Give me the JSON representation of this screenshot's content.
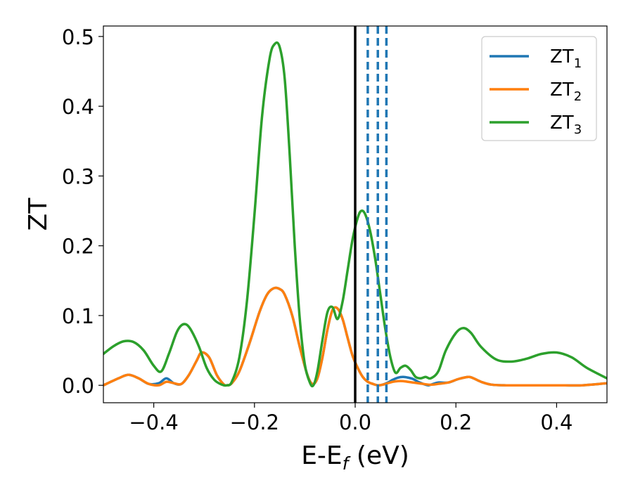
{
  "chart_data": {
    "type": "line",
    "xlabel": "E-E",
    "xlabel_sub": "f",
    "xlabel_unit": "(eV)",
    "ylabel": "ZT",
    "xlim": [
      -0.5,
      0.5
    ],
    "ylim": [
      -0.025,
      0.515
    ],
    "xticks": [
      -0.4,
      -0.2,
      0.0,
      0.2,
      0.4
    ],
    "xtick_labels": [
      "−0.4",
      "−0.2",
      "0.0",
      "0.2",
      "0.4"
    ],
    "yticks": [
      0.0,
      0.1,
      0.2,
      0.3,
      0.4,
      0.5
    ],
    "ytick_labels": [
      "0.0",
      "0.1",
      "0.2",
      "0.3",
      "0.4",
      "0.5"
    ],
    "legend_position": "top-right",
    "grid": false,
    "fermi_line_x": 0.0,
    "dashed_lines_x": [
      0.025,
      0.045,
      0.062
    ],
    "dashed_color": "#1f77b4",
    "series": [
      {
        "name": "ZT",
        "sub": "1",
        "color": "#1f77b4",
        "x": [
          -0.5,
          -0.47,
          -0.45,
          -0.43,
          -0.41,
          -0.39,
          -0.375,
          -0.36,
          -0.345,
          -0.33,
          -0.315,
          -0.305,
          -0.29,
          -0.275,
          -0.262,
          -0.255,
          -0.245,
          -0.23,
          -0.21,
          -0.19,
          -0.175,
          -0.162,
          -0.15,
          -0.14,
          -0.125,
          -0.11,
          -0.095,
          -0.085,
          -0.075,
          -0.065,
          -0.055,
          -0.045,
          -0.035,
          -0.025,
          -0.015,
          -0.005,
          0.005,
          0.015,
          0.025,
          0.035,
          0.045,
          0.055,
          0.065,
          0.075,
          0.085,
          0.095,
          0.105,
          0.115,
          0.125,
          0.135,
          0.145,
          0.155,
          0.165,
          0.185,
          0.205,
          0.225,
          0.235,
          0.25,
          0.27,
          0.3,
          0.35,
          0.4,
          0.45,
          0.5
        ],
        "y": [
          0.0,
          0.01,
          0.015,
          0.01,
          0.002,
          0.003,
          0.01,
          0.003,
          0.002,
          0.015,
          0.035,
          0.047,
          0.04,
          0.015,
          0.002,
          0.0,
          0.003,
          0.02,
          0.06,
          0.105,
          0.13,
          0.139,
          0.138,
          0.13,
          0.1,
          0.055,
          0.015,
          0.002,
          0.01,
          0.04,
          0.08,
          0.108,
          0.11,
          0.095,
          0.068,
          0.042,
          0.025,
          0.012,
          0.005,
          0.002,
          0.0,
          0.001,
          0.004,
          0.008,
          0.011,
          0.012,
          0.011,
          0.009,
          0.005,
          0.002,
          0.0,
          0.002,
          0.004,
          0.004,
          0.009,
          0.012,
          0.01,
          0.005,
          0.001,
          0.0,
          0.0,
          0.0,
          0.0,
          0.003
        ]
      },
      {
        "name": "ZT",
        "sub": "2",
        "color": "#ff7f0e",
        "x": [
          -0.5,
          -0.47,
          -0.45,
          -0.43,
          -0.41,
          -0.39,
          -0.375,
          -0.36,
          -0.345,
          -0.33,
          -0.315,
          -0.305,
          -0.29,
          -0.275,
          -0.262,
          -0.255,
          -0.245,
          -0.23,
          -0.21,
          -0.19,
          -0.175,
          -0.162,
          -0.15,
          -0.14,
          -0.125,
          -0.11,
          -0.095,
          -0.085,
          -0.075,
          -0.065,
          -0.055,
          -0.045,
          -0.035,
          -0.025,
          -0.015,
          -0.005,
          0.005,
          0.015,
          0.025,
          0.035,
          0.045,
          0.055,
          0.065,
          0.075,
          0.085,
          0.095,
          0.105,
          0.115,
          0.125,
          0.135,
          0.145,
          0.155,
          0.165,
          0.185,
          0.205,
          0.225,
          0.235,
          0.25,
          0.27,
          0.3,
          0.35,
          0.4,
          0.45,
          0.5
        ],
        "y": [
          0.0,
          0.01,
          0.015,
          0.01,
          0.002,
          0.0,
          0.005,
          0.003,
          0.002,
          0.015,
          0.035,
          0.047,
          0.04,
          0.015,
          0.002,
          0.0,
          0.003,
          0.02,
          0.06,
          0.105,
          0.13,
          0.139,
          0.138,
          0.13,
          0.1,
          0.055,
          0.015,
          0.002,
          0.01,
          0.04,
          0.08,
          0.108,
          0.11,
          0.095,
          0.068,
          0.042,
          0.025,
          0.012,
          0.005,
          0.002,
          0.0,
          0.001,
          0.003,
          0.005,
          0.006,
          0.006,
          0.005,
          0.004,
          0.003,
          0.002,
          0.001,
          0.001,
          0.002,
          0.004,
          0.009,
          0.012,
          0.01,
          0.005,
          0.001,
          0.0,
          0.0,
          0.0,
          0.0,
          0.003
        ]
      },
      {
        "name": "ZT",
        "sub": "3",
        "color": "#2ca02c",
        "x": [
          -0.5,
          -0.48,
          -0.46,
          -0.44,
          -0.42,
          -0.4,
          -0.385,
          -0.37,
          -0.355,
          -0.345,
          -0.335,
          -0.325,
          -0.31,
          -0.295,
          -0.28,
          -0.265,
          -0.255,
          -0.245,
          -0.23,
          -0.215,
          -0.2,
          -0.185,
          -0.17,
          -0.16,
          -0.15,
          -0.14,
          -0.13,
          -0.12,
          -0.11,
          -0.1,
          -0.09,
          -0.083,
          -0.075,
          -0.065,
          -0.055,
          -0.045,
          -0.035,
          -0.025,
          -0.015,
          -0.005,
          0.005,
          0.012,
          0.02,
          0.03,
          0.04,
          0.05,
          0.06,
          0.07,
          0.08,
          0.09,
          0.1,
          0.11,
          0.12,
          0.13,
          0.14,
          0.15,
          0.165,
          0.18,
          0.2,
          0.215,
          0.23,
          0.25,
          0.28,
          0.31,
          0.34,
          0.37,
          0.4,
          0.43,
          0.46,
          0.5
        ],
        "y": [
          0.045,
          0.056,
          0.063,
          0.062,
          0.05,
          0.028,
          0.02,
          0.045,
          0.075,
          0.086,
          0.087,
          0.078,
          0.055,
          0.025,
          0.008,
          0.001,
          0.0,
          0.005,
          0.04,
          0.12,
          0.245,
          0.385,
          0.468,
          0.489,
          0.485,
          0.44,
          0.33,
          0.2,
          0.095,
          0.03,
          0.004,
          0.0,
          0.02,
          0.065,
          0.105,
          0.112,
          0.095,
          0.12,
          0.165,
          0.21,
          0.24,
          0.25,
          0.245,
          0.22,
          0.18,
          0.13,
          0.08,
          0.04,
          0.018,
          0.025,
          0.028,
          0.022,
          0.012,
          0.01,
          0.012,
          0.01,
          0.02,
          0.05,
          0.075,
          0.082,
          0.075,
          0.055,
          0.037,
          0.034,
          0.038,
          0.045,
          0.047,
          0.04,
          0.025,
          0.01
        ]
      }
    ]
  }
}
